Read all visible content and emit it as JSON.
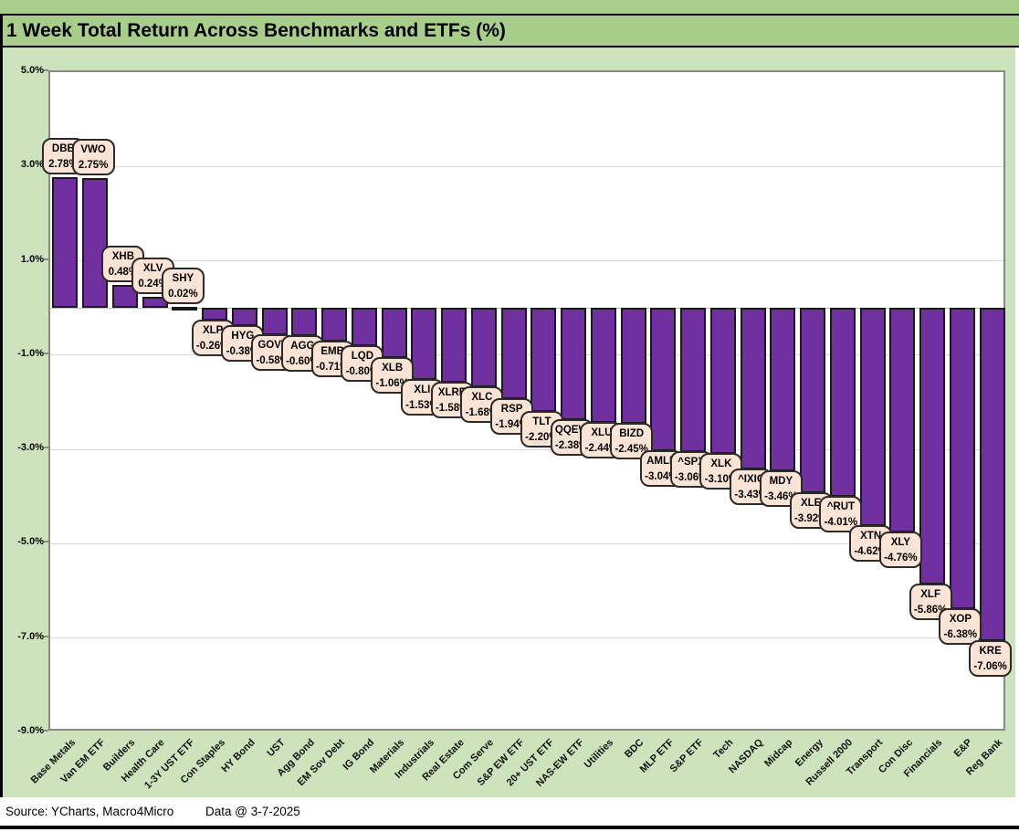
{
  "header": {
    "title": "1 Week Total Return Across Benchmarks and ETFs (%)"
  },
  "footer": {
    "source": "Source: YCharts, Macro4Micro",
    "data_date": "Data @ 3-7-2025"
  },
  "colors": {
    "title_bar_green": "#a9ce8c",
    "page_green": "#cde3bc",
    "bar_purple": "#7030a0",
    "bar_border": "#1a1a1a",
    "label_box_fill": "#fbe3d5",
    "label_box_border": "#2b2b2b",
    "gridline": "#d9d9d9",
    "plot_background": "#ffffff"
  },
  "chart_data": {
    "type": "bar",
    "title": "1 Week Total Return Across Benchmarks and ETFs (%)",
    "xlabel": "",
    "ylabel": "",
    "ylim": [
      -9.0,
      5.0
    ],
    "grid": true,
    "legend": "none",
    "yticks": [
      5.0,
      3.0,
      1.0,
      -1.0,
      -3.0,
      -5.0,
      -7.0,
      -9.0
    ],
    "ytick_labels": [
      "5.0%",
      "3.0%",
      "1.0%",
      "-1.0%",
      "-3.0%",
      "-5.0%",
      "-7.0%",
      "-9.0%"
    ],
    "bars": [
      {
        "category": "Base Metals",
        "ticker": "DBB",
        "value": 2.78,
        "label": "2.78%"
      },
      {
        "category": "Van EM ETF",
        "ticker": "VWO",
        "value": 2.75,
        "label": "2.75%"
      },
      {
        "category": "Builders",
        "ticker": "XHB",
        "value": 0.48,
        "label": "0.48%"
      },
      {
        "category": "Health Care",
        "ticker": "XLV",
        "value": 0.24,
        "label": "0.24%"
      },
      {
        "category": "1-3Y UST ETF",
        "ticker": "SHY",
        "value": 0.02,
        "label": "0.02%"
      },
      {
        "category": "Con Staples",
        "ticker": "XLP",
        "value": -0.26,
        "label": "-0.26%"
      },
      {
        "category": "HY Bond",
        "ticker": "HYG",
        "value": -0.38,
        "label": "-0.38%"
      },
      {
        "category": "UST",
        "ticker": "GOVT",
        "value": -0.58,
        "label": "-0.58%"
      },
      {
        "category": "Agg Bond",
        "ticker": "AGG",
        "value": -0.6,
        "label": "-0.60%"
      },
      {
        "category": "EM Sov Debt",
        "ticker": "EMB",
        "value": -0.71,
        "label": "-0.71%"
      },
      {
        "category": "IG Bond",
        "ticker": "LQD",
        "value": -0.8,
        "label": "-0.80%"
      },
      {
        "category": "Materials",
        "ticker": "XLB",
        "value": -1.06,
        "label": "-1.06%"
      },
      {
        "category": "Industrials",
        "ticker": "XLI",
        "value": -1.53,
        "label": "-1.53%"
      },
      {
        "category": "Real Estate",
        "ticker": "XLRE",
        "value": -1.58,
        "label": "-1.58%"
      },
      {
        "category": "Com Serve",
        "ticker": "XLC",
        "value": -1.68,
        "label": "-1.68%"
      },
      {
        "category": "S&P EW ETF",
        "ticker": "RSP",
        "value": -1.94,
        "label": "-1.94%"
      },
      {
        "category": "20+ UST ETF",
        "ticker": "TLT",
        "value": -2.2,
        "label": "-2.20%"
      },
      {
        "category": "NAS-EW ETF",
        "ticker": "QQEW",
        "value": -2.38,
        "label": "-2.38%"
      },
      {
        "category": "Utilities",
        "ticker": "XLU",
        "value": -2.44,
        "label": "-2.44%"
      },
      {
        "category": "BDC",
        "ticker": "BIZD",
        "value": -2.45,
        "label": "-2.45%"
      },
      {
        "category": "MLP ETF",
        "ticker": "AMLP",
        "value": -3.04,
        "label": "-3.04%"
      },
      {
        "category": "S&P ETF",
        "ticker": "^SPX",
        "value": -3.06,
        "label": "-3.06%"
      },
      {
        "category": "Tech",
        "ticker": "XLK",
        "value": -3.1,
        "label": "-3.10%"
      },
      {
        "category": "NASDAQ",
        "ticker": "^IXIC",
        "value": -3.43,
        "label": "-3.43%"
      },
      {
        "category": "Midcap",
        "ticker": "MDY",
        "value": -3.46,
        "label": "-3.46%"
      },
      {
        "category": "Energy",
        "ticker": "XLE",
        "value": -3.92,
        "label": "-3.92%"
      },
      {
        "category": "Russell 2000",
        "ticker": "^RUT",
        "value": -4.01,
        "label": "-4.01%"
      },
      {
        "category": "Transport",
        "ticker": "XTN",
        "value": -4.62,
        "label": "-4.62%"
      },
      {
        "category": "Con Disc",
        "ticker": "XLY",
        "value": -4.76,
        "label": "-4.76%"
      },
      {
        "category": "Financials",
        "ticker": "XLF",
        "value": -5.86,
        "label": "-5.86%"
      },
      {
        "category": "E&P",
        "ticker": "XOP",
        "value": -6.38,
        "label": "-6.38%"
      },
      {
        "category": "Reg Bank",
        "ticker": "KRE",
        "value": -7.06,
        "label": "-7.06%"
      }
    ]
  }
}
